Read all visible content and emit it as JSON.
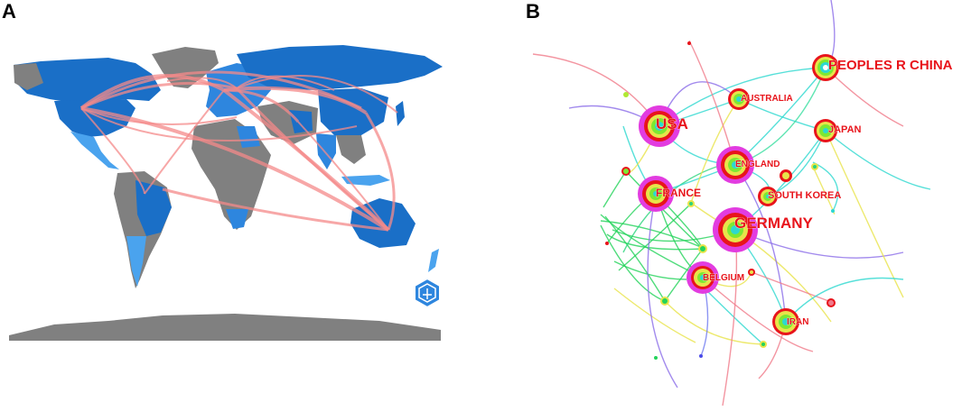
{
  "panels": {
    "a": {
      "letter": "A"
    },
    "b": {
      "letter": "B"
    }
  },
  "map": {
    "colors": {
      "dark_blue": "#1a6fc7",
      "mid_blue": "#2e86de",
      "light_blue": "#4aa3ee",
      "no_data": "#808080",
      "link": "#f48a8a"
    },
    "logo_icon": "hexagon-badge-icon"
  },
  "network": {
    "label_color": "#e8141b",
    "nodes": [
      {
        "id": "peoples-r-china",
        "label": "PEOPLES R CHINA"
      },
      {
        "id": "usa",
        "label": "USA"
      },
      {
        "id": "australia",
        "label": "AUSTRALIA"
      },
      {
        "id": "japan",
        "label": "JAPAN"
      },
      {
        "id": "england",
        "label": "ENGLAND"
      },
      {
        "id": "france",
        "label": "FRANCE"
      },
      {
        "id": "south-korea",
        "label": "SOUTH KOREA"
      },
      {
        "id": "germany",
        "label": "GERMANY"
      },
      {
        "id": "belgium",
        "label": "BELGIUM"
      },
      {
        "id": "iran",
        "label": "IRAN"
      }
    ]
  }
}
